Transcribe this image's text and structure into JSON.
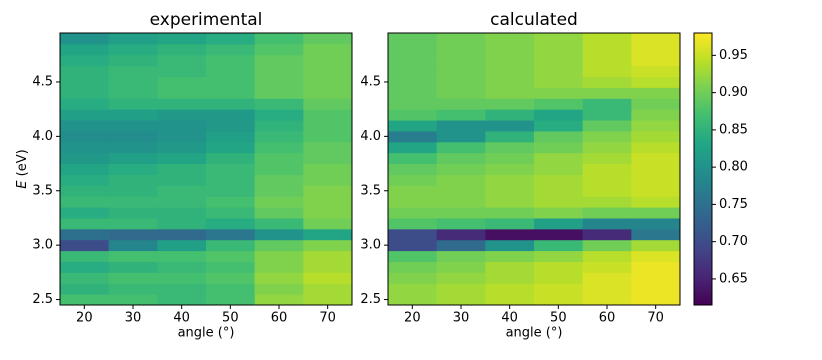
{
  "chart_data": [
    {
      "type": "heatmap",
      "title": "experimental",
      "xlabel": "angle (°)",
      "ylabel_symbol": "E",
      "ylabel_unit": "(eV)",
      "x": [
        20,
        30,
        40,
        50,
        60,
        70
      ],
      "y": [
        2.5,
        2.6,
        2.7,
        2.8,
        2.9,
        3.0,
        3.1,
        3.2,
        3.3,
        3.4,
        3.5,
        3.6,
        3.7,
        3.8,
        3.9,
        4.0,
        4.1,
        4.2,
        4.3,
        4.4,
        4.5,
        4.6,
        4.7,
        4.8,
        4.9
      ],
      "z": [
        [
          0.87,
          0.87,
          0.86,
          0.87,
          0.92,
          0.93
        ],
        [
          0.85,
          0.86,
          0.86,
          0.87,
          0.91,
          0.93
        ],
        [
          0.86,
          0.87,
          0.87,
          0.88,
          0.92,
          0.94
        ],
        [
          0.84,
          0.85,
          0.86,
          0.87,
          0.91,
          0.93
        ],
        [
          0.86,
          0.87,
          0.87,
          0.88,
          0.91,
          0.93
        ],
        [
          0.7,
          0.78,
          0.82,
          0.86,
          0.89,
          0.91
        ],
        [
          0.75,
          0.74,
          0.74,
          0.76,
          0.8,
          0.83
        ],
        [
          0.86,
          0.86,
          0.85,
          0.84,
          0.86,
          0.9
        ],
        [
          0.84,
          0.85,
          0.85,
          0.86,
          0.89,
          0.91
        ],
        [
          0.86,
          0.86,
          0.86,
          0.87,
          0.9,
          0.91
        ],
        [
          0.85,
          0.85,
          0.86,
          0.86,
          0.89,
          0.91
        ],
        [
          0.84,
          0.85,
          0.85,
          0.86,
          0.89,
          0.9
        ],
        [
          0.83,
          0.84,
          0.85,
          0.86,
          0.88,
          0.9
        ],
        [
          0.81,
          0.82,
          0.83,
          0.85,
          0.88,
          0.89
        ],
        [
          0.8,
          0.8,
          0.81,
          0.83,
          0.87,
          0.89
        ],
        [
          0.79,
          0.79,
          0.8,
          0.82,
          0.86,
          0.88
        ],
        [
          0.8,
          0.8,
          0.8,
          0.81,
          0.85,
          0.88
        ],
        [
          0.82,
          0.82,
          0.81,
          0.81,
          0.84,
          0.88
        ],
        [
          0.84,
          0.85,
          0.85,
          0.85,
          0.86,
          0.89
        ],
        [
          0.85,
          0.86,
          0.87,
          0.87,
          0.89,
          0.9
        ],
        [
          0.85,
          0.86,
          0.87,
          0.87,
          0.89,
          0.9
        ],
        [
          0.85,
          0.86,
          0.86,
          0.87,
          0.89,
          0.9
        ],
        [
          0.84,
          0.85,
          0.86,
          0.87,
          0.89,
          0.9
        ],
        [
          0.83,
          0.84,
          0.85,
          0.86,
          0.88,
          0.9
        ],
        [
          0.8,
          0.82,
          0.83,
          0.84,
          0.87,
          0.89
        ]
      ],
      "xlim": [
        15,
        75
      ],
      "ylim": [
        2.45,
        4.95
      ],
      "xticks": [
        20,
        30,
        40,
        50,
        60,
        70
      ],
      "yticks": [
        2.5,
        {
          "value": 3,
          "label": "3.0"
        },
        3.5,
        {
          "value": 4,
          "label": "4.0"
        },
        4.5
      ]
    },
    {
      "type": "heatmap",
      "title": "calculated",
      "xlabel": "angle (°)",
      "x": [
        20,
        30,
        40,
        50,
        60,
        70
      ],
      "y": [
        2.5,
        2.6,
        2.7,
        2.8,
        2.9,
        3.0,
        3.1,
        3.2,
        3.3,
        3.4,
        3.5,
        3.6,
        3.7,
        3.8,
        3.9,
        4.0,
        4.1,
        4.2,
        4.3,
        4.4,
        4.5,
        4.6,
        4.7,
        4.8,
        4.9
      ],
      "z": [
        [
          0.92,
          0.93,
          0.94,
          0.95,
          0.96,
          0.97
        ],
        [
          0.92,
          0.93,
          0.94,
          0.95,
          0.96,
          0.97
        ],
        [
          0.91,
          0.92,
          0.93,
          0.94,
          0.96,
          0.97
        ],
        [
          0.9,
          0.91,
          0.93,
          0.94,
          0.95,
          0.97
        ],
        [
          0.88,
          0.9,
          0.91,
          0.92,
          0.94,
          0.96
        ],
        [
          0.7,
          0.74,
          0.8,
          0.86,
          0.9,
          0.93
        ],
        [
          0.7,
          0.66,
          0.63,
          0.63,
          0.66,
          0.76
        ],
        [
          0.88,
          0.87,
          0.86,
          0.82,
          0.78,
          0.78
        ],
        [
          0.9,
          0.9,
          0.9,
          0.91,
          0.9,
          0.9
        ],
        [
          0.91,
          0.91,
          0.92,
          0.93,
          0.93,
          0.94
        ],
        [
          0.91,
          0.91,
          0.92,
          0.93,
          0.94,
          0.95
        ],
        [
          0.9,
          0.91,
          0.92,
          0.93,
          0.94,
          0.95
        ],
        [
          0.89,
          0.9,
          0.91,
          0.92,
          0.94,
          0.95
        ],
        [
          0.87,
          0.89,
          0.9,
          0.92,
          0.93,
          0.95
        ],
        [
          0.83,
          0.87,
          0.89,
          0.9,
          0.92,
          0.94
        ],
        [
          0.77,
          0.8,
          0.85,
          0.89,
          0.91,
          0.93
        ],
        [
          0.83,
          0.8,
          0.8,
          0.84,
          0.89,
          0.92
        ],
        [
          0.88,
          0.87,
          0.85,
          0.83,
          0.86,
          0.91
        ],
        [
          0.89,
          0.89,
          0.89,
          0.88,
          0.86,
          0.9
        ],
        [
          0.89,
          0.9,
          0.91,
          0.91,
          0.91,
          0.91
        ],
        [
          0.89,
          0.9,
          0.91,
          0.92,
          0.93,
          0.94
        ],
        [
          0.89,
          0.9,
          0.91,
          0.92,
          0.94,
          0.95
        ],
        [
          0.89,
          0.9,
          0.91,
          0.92,
          0.94,
          0.96
        ],
        [
          0.89,
          0.9,
          0.91,
          0.92,
          0.94,
          0.96
        ],
        [
          0.89,
          0.9,
          0.91,
          0.92,
          0.94,
          0.96
        ]
      ],
      "xlim": [
        15,
        75
      ],
      "ylim": [
        2.45,
        4.95
      ],
      "xticks": [
        20,
        30,
        40,
        50,
        60,
        70
      ],
      "yticks": [
        2.5,
        {
          "value": 3,
          "label": "3.0"
        },
        3.5,
        {
          "value": 4,
          "label": "4.0"
        },
        4.5
      ]
    }
  ],
  "colorbar": {
    "colormap": "viridis",
    "clim": [
      0.615,
      0.98
    ],
    "ticks": [
      0.65,
      {
        "value": 0.7,
        "label": "0.70"
      },
      0.75,
      {
        "value": 0.8,
        "label": "0.80"
      },
      0.85,
      {
        "value": 0.9,
        "label": "0.90"
      },
      0.95
    ]
  }
}
